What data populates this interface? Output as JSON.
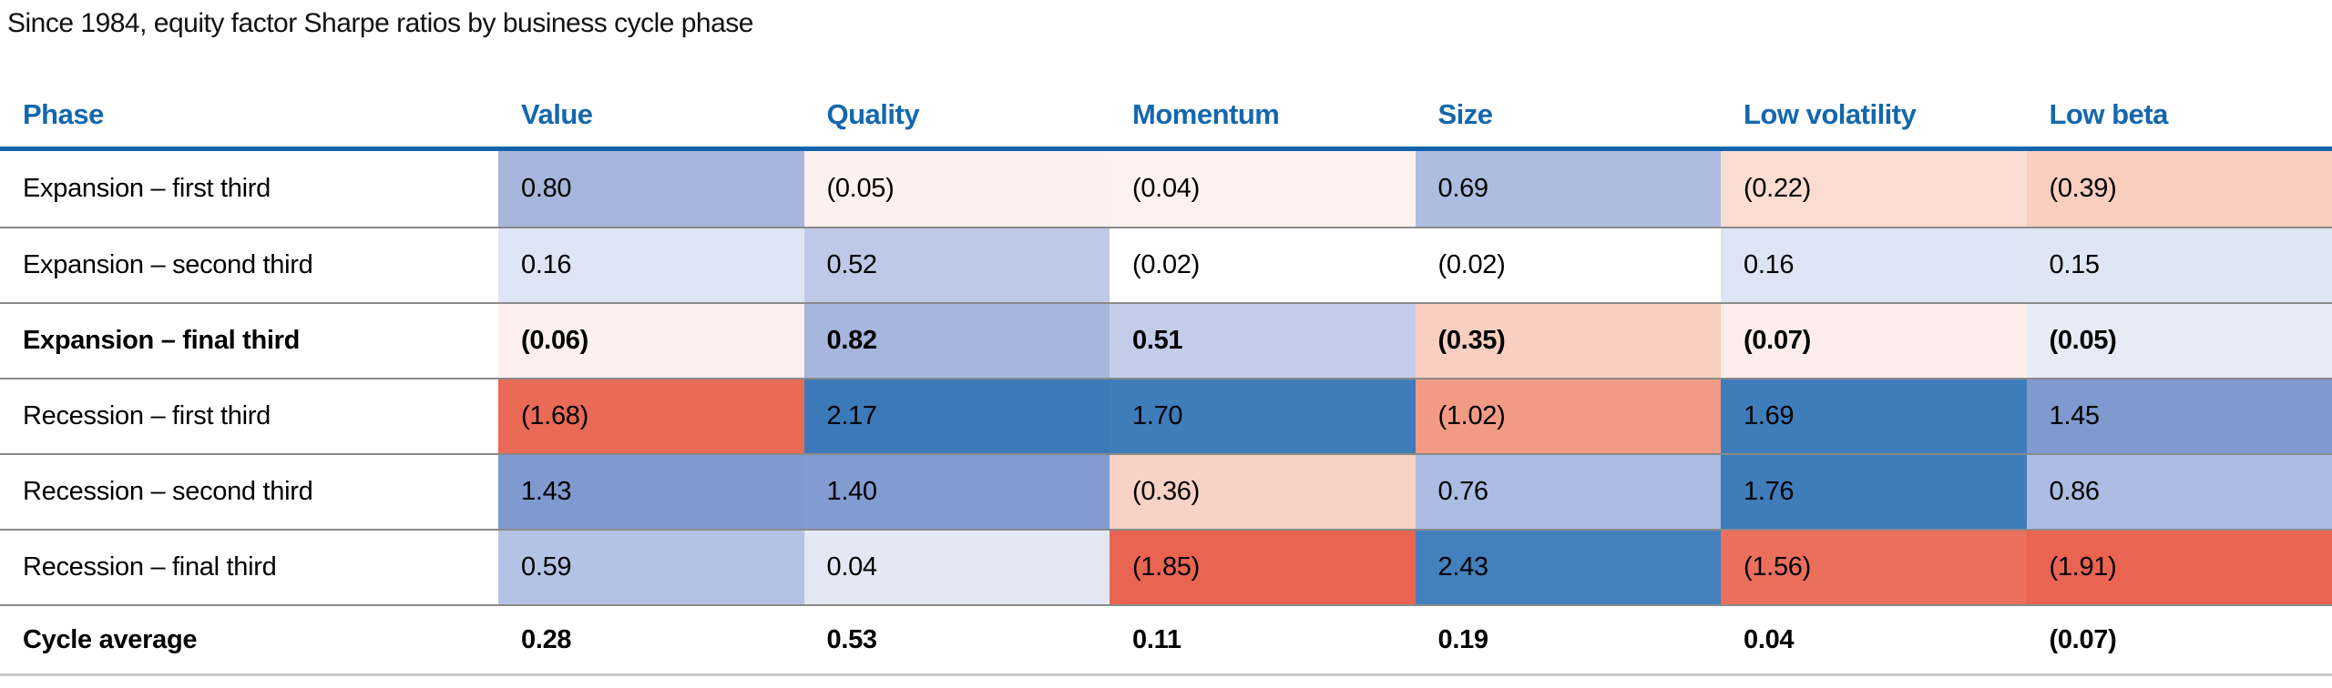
{
  "title": "Since 1984, equity factor Sharpe ratios by business cycle phase",
  "table": {
    "columns": [
      "Phase",
      "Value",
      "Quality",
      "Momentum",
      "Size",
      "Low volatility",
      "Low beta"
    ],
    "rows": [
      {
        "phase": "Expansion – first third",
        "bold": false,
        "cells": [
          {
            "text": "0.80",
            "bg": "#a6b6dc"
          },
          {
            "text": "(0.05)",
            "bg": "#fdf1ef"
          },
          {
            "text": "(0.04)",
            "bg": "#fdf2f0"
          },
          {
            "text": "0.69",
            "bg": "#aebcdf"
          },
          {
            "text": "(0.22)",
            "bg": "#fadcd0"
          },
          {
            "text": "(0.39)",
            "bg": "#f8cebe"
          }
        ]
      },
      {
        "phase": "Expansion – second third",
        "bold": false,
        "cells": [
          {
            "text": "0.16",
            "bg": "#dde4f3"
          },
          {
            "text": "0.52",
            "bg": "#bec9e8"
          },
          {
            "text": "(0.02)",
            "bg": "#ffffff"
          },
          {
            "text": "(0.02)",
            "bg": "#ffffff"
          },
          {
            "text": "0.16",
            "bg": "#dde4f3"
          },
          {
            "text": "0.15",
            "bg": "#dee5f3"
          }
        ]
      },
      {
        "phase": "Expansion – final third",
        "bold": true,
        "cells": [
          {
            "text": "(0.06)",
            "bg": "#fdf0ee"
          },
          {
            "text": "0.82",
            "bg": "#a6b6dc"
          },
          {
            "text": "0.51",
            "bg": "#c3cdea"
          },
          {
            "text": "(0.35)",
            "bg": "#f8cfc0"
          },
          {
            "text": "(0.07)",
            "bg": "#fdeeec"
          },
          {
            "text": "(0.05)",
            "bg": "#e7ebf6"
          }
        ]
      },
      {
        "phase": "Recession – first third",
        "bold": false,
        "cells": [
          {
            "text": "(1.68)",
            "bg": "#e86a57"
          },
          {
            "text": "2.17",
            "bg": "#3c79b9"
          },
          {
            "text": "1.70",
            "bg": "#3f7cba"
          },
          {
            "text": "(1.02)",
            "bg": "#f19b84"
          },
          {
            "text": "1.69",
            "bg": "#3f7cba"
          },
          {
            "text": "1.45",
            "bg": "#8099cf"
          }
        ]
      },
      {
        "phase": "Recession – second third",
        "bold": false,
        "cells": [
          {
            "text": "1.43",
            "bg": "#8099cf"
          },
          {
            "text": "1.40",
            "bg": "#829bd0"
          },
          {
            "text": "(0.36)",
            "bg": "#f8d2c4"
          },
          {
            "text": "0.76",
            "bg": "#aabce2"
          },
          {
            "text": "1.76",
            "bg": "#3f7cba"
          },
          {
            "text": "0.86",
            "bg": "#abbde2"
          }
        ]
      },
      {
        "phase": "Recession – final third",
        "bold": false,
        "cells": [
          {
            "text": "0.59",
            "bg": "#b4c2e4"
          },
          {
            "text": "0.04",
            "bg": "#e3e8f5"
          },
          {
            "text": "(1.85)",
            "bg": "#e96552"
          },
          {
            "text": "2.43",
            "bg": "#4380bd"
          },
          {
            "text": "(1.56)",
            "bg": "#eb6f5d"
          },
          {
            "text": "(1.91)",
            "bg": "#e96451"
          }
        ]
      },
      {
        "phase": "Cycle average",
        "bold": true,
        "cells": [
          {
            "text": "0.28",
            "bg": "#ffffff"
          },
          {
            "text": "0.53",
            "bg": "#ffffff"
          },
          {
            "text": "0.11",
            "bg": "#ffffff"
          },
          {
            "text": "0.19",
            "bg": "#ffffff"
          },
          {
            "text": "0.04",
            "bg": "#ffffff"
          },
          {
            "text": "(0.07)",
            "bg": "#ffffff"
          }
        ]
      }
    ]
  },
  "colors": {
    "header_text": "#1467ad",
    "header_rule": "#1264aa",
    "row_separator": "#8a8a8a",
    "bottom_border": "#c9c9c9",
    "strong_blue": "#3f7cba",
    "strong_red": "#e86a57"
  },
  "chart_data": {
    "type": "heatmap",
    "title": "Since 1984, equity factor Sharpe ratios by business cycle phase",
    "columns": [
      "Value",
      "Quality",
      "Momentum",
      "Size",
      "Low volatility",
      "Low beta"
    ],
    "rows": [
      "Expansion – first third",
      "Expansion – second third",
      "Expansion – final third",
      "Recession – first third",
      "Recession – second third",
      "Recession – final third",
      "Cycle average"
    ],
    "values": [
      [
        0.8,
        -0.05,
        -0.04,
        0.69,
        -0.22,
        -0.39
      ],
      [
        0.16,
        0.52,
        -0.02,
        -0.02,
        0.16,
        0.15
      ],
      [
        -0.06,
        0.82,
        0.51,
        -0.35,
        -0.07,
        -0.05
      ],
      [
        -1.68,
        2.17,
        1.7,
        -1.02,
        1.69,
        1.45
      ],
      [
        1.43,
        1.4,
        -0.36,
        0.76,
        1.76,
        0.86
      ],
      [
        0.59,
        0.04,
        -1.85,
        2.43,
        -1.56,
        -1.91
      ],
      [
        0.28,
        0.53,
        0.11,
        0.19,
        0.04,
        -0.07
      ]
    ],
    "negative_format": "parentheses",
    "colorscale": "diverging red (negative) to blue (positive), white near zero",
    "notes": "Bold rows: 'Expansion – final third' and 'Cycle average'; 'Cycle average' row has no cell shading"
  }
}
